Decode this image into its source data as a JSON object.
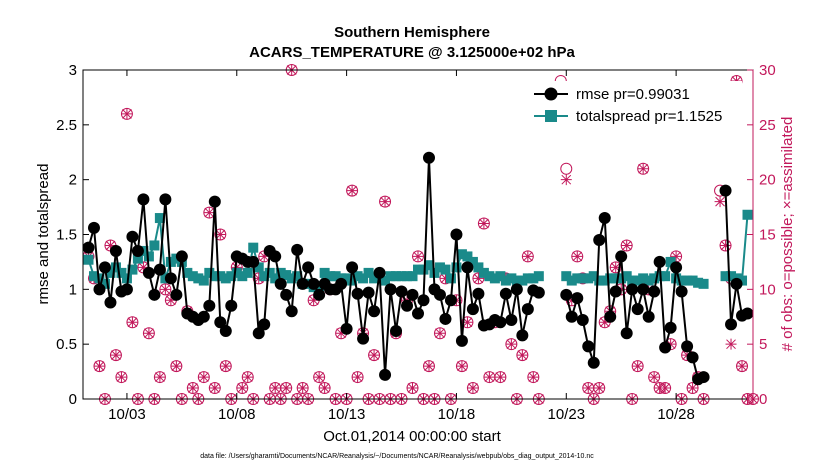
{
  "chart_data": {
    "type": "line",
    "title": "Southern Hemisphere",
    "subtitle": "ACARS_TEMPERATURE @ 3.125000e+02 hPa",
    "xlabel": "Oct.01,2014 00:00:00 start",
    "ylabel": "rmse and totalspread",
    "y2label": "# of obs: o=possible; ×=assimilated",
    "xlim": [
      1,
      31.5
    ],
    "ylim": [
      0,
      3
    ],
    "y2lim": [
      0,
      30
    ],
    "xtick_values": [
      3,
      8,
      13,
      18,
      23,
      28
    ],
    "xtick_labels": [
      "10/03",
      "10/08",
      "10/13",
      "10/18",
      "10/23",
      "10/28"
    ],
    "ytick_labels": [
      "0",
      "0.5",
      "1",
      "1.5",
      "2",
      "2.5",
      "3"
    ],
    "y2tick_labels": [
      "0",
      "5",
      "10",
      "15",
      "20",
      "25",
      "30"
    ],
    "grid": false,
    "legend_position": "top-right",
    "colors": {
      "rmse": "#000000",
      "totalspread": "#1a8a8a",
      "obs": "#c2185b"
    },
    "series": [
      {
        "name": "rmse pr=0.99031",
        "marker": "circle",
        "segments": [
          {
            "x": [
              1.25,
              1.5,
              1.75,
              2.0,
              2.25,
              2.5,
              2.75,
              3.0,
              3.25,
              3.5,
              3.75,
              4.0,
              4.25,
              4.5,
              4.75,
              5.0,
              5.25,
              5.5,
              5.75,
              6.0,
              6.25,
              6.5,
              6.75,
              7.0,
              7.25,
              7.5,
              7.75,
              8.0,
              8.25,
              8.5,
              8.75,
              9.0,
              9.25,
              9.5,
              9.75,
              10.0,
              10.25,
              10.5,
              10.75,
              11.0,
              11.25,
              11.5,
              11.75,
              12.0,
              12.25,
              12.5,
              12.75,
              13.0,
              13.25,
              13.5,
              13.75,
              14.0,
              14.25,
              14.5,
              14.75,
              15.0,
              15.25,
              15.5,
              15.75,
              16.0,
              16.25,
              16.5,
              16.75,
              17.0,
              17.25,
              17.5,
              17.75,
              18.0,
              18.25,
              18.5,
              18.75,
              19.0,
              19.25,
              19.5,
              19.75,
              20.0,
              20.25,
              20.5,
              20.75,
              21.0,
              21.25,
              21.5,
              21.75
            ],
            "y": [
              1.38,
              1.56,
              1.0,
              1.2,
              0.88,
              1.35,
              0.98,
              1.0,
              1.48,
              1.35,
              1.82,
              1.15,
              0.95,
              1.18,
              1.82,
              1.1,
              0.95,
              1.3,
              0.78,
              0.75,
              0.72,
              0.75,
              0.85,
              1.8,
              0.7,
              0.62,
              0.85,
              1.3,
              1.28,
              1.25,
              1.25,
              0.6,
              0.68,
              1.35,
              1.3,
              1.05,
              0.95,
              0.8,
              1.36,
              1.05,
              1.2,
              1.05,
              0.95,
              1.05,
              1.0,
              1.0,
              1.05,
              0.64,
              1.2,
              0.96,
              0.55,
              0.97,
              0.8,
              1.15,
              0.22,
              1.0,
              0.62,
              0.98,
              0.85,
              0.95,
              0.78,
              0.9,
              2.2,
              1.0,
              0.95,
              0.73,
              0.9,
              1.5,
              0.53,
              1.2,
              0.82,
              0.96,
              0.67,
              0.68,
              0.72,
              0.7,
              0.96,
              0.72,
              1.0,
              0.58,
              0.82,
              0.99,
              0.97
            ]
          },
          {
            "x": [
              23.0,
              23.25,
              23.5,
              23.75,
              24.0,
              24.25,
              24.5,
              24.75,
              25.0,
              25.25,
              25.5,
              25.75,
              26.0,
              26.25,
              26.5,
              26.75,
              27.0,
              27.25,
              27.5,
              27.75,
              28.0,
              28.25,
              28.5,
              28.75,
              29.0,
              29.25
            ],
            "y": [
              0.95,
              0.75,
              0.92,
              0.72,
              0.48,
              0.33,
              1.45,
              1.65,
              0.75,
              0.98,
              1.3,
              0.6,
              1.0,
              0.82,
              1.0,
              0.75,
              0.98,
              1.25,
              0.47,
              0.65,
              1.2,
              0.98,
              0.48,
              0.38,
              0.18,
              0.2
            ]
          },
          {
            "x": [
              30.25,
              30.5,
              30.75,
              31.0,
              31.25
            ],
            "y": [
              1.9,
              0.68,
              1.05,
              0.76,
              0.78
            ]
          }
        ]
      },
      {
        "name": "totalspread pr=1.1525",
        "marker": "square",
        "segments": [
          {
            "x": [
              1.25,
              1.5,
              1.75,
              2.0,
              2.25,
              2.5,
              2.75,
              3.0,
              3.25,
              3.5,
              3.75,
              4.0,
              4.25,
              4.5,
              4.75,
              5.0,
              5.25,
              5.5,
              5.75,
              6.0,
              6.25,
              6.5,
              6.75,
              7.0,
              7.25,
              7.5,
              7.75,
              8.0,
              8.25,
              8.5,
              8.75,
              9.0,
              9.25,
              9.5,
              9.75,
              10.0,
              10.25,
              10.5,
              10.75,
              11.0,
              11.25,
              11.5,
              11.75,
              12.0,
              12.25,
              12.5,
              12.75,
              13.0,
              13.25,
              13.5,
              13.75,
              14.0,
              14.25,
              14.5,
              14.75,
              15.0,
              15.25,
              15.5,
              15.75,
              16.0,
              16.25,
              16.5,
              16.75,
              17.0,
              17.25,
              17.5,
              17.75,
              18.0,
              18.25,
              18.5,
              18.75,
              19.0,
              19.25,
              19.5,
              19.75,
              20.0,
              20.25,
              20.5,
              20.75,
              21.0,
              21.25,
              21.5,
              21.75
            ],
            "y": [
              1.27,
              1.12,
              1.1,
              1.05,
              1.15,
              1.2,
              1.15,
              1.1,
              1.18,
              1.28,
              1.35,
              1.3,
              1.4,
              1.65,
              1.1,
              1.25,
              1.28,
              1.25,
              1.15,
              1.12,
              1.1,
              1.08,
              1.15,
              1.12,
              1.12,
              1.1,
              1.12,
              1.15,
              1.12,
              1.15,
              1.38,
              1.2,
              1.12,
              1.15,
              1.1,
              1.15,
              1.13,
              1.1,
              1.12,
              1.05,
              1.05,
              1.02,
              1.03,
              1.15,
              1.12,
              1.12,
              1.1,
              1.1,
              1.08,
              1.12,
              1.1,
              1.15,
              1.1,
              1.12,
              1.08,
              1.12,
              1.12,
              1.12,
              1.12,
              1.12,
              1.18,
              1.18,
              1.22,
              1.15,
              1.2,
              1.18,
              1.1,
              1.2,
              1.32,
              1.3,
              1.25,
              1.2,
              1.15,
              1.12,
              1.1,
              1.12,
              1.08,
              1.1,
              1.08,
              1.08,
              1.1,
              1.1,
              1.12
            ]
          },
          {
            "x": [
              23.0,
              23.25,
              23.5,
              23.75,
              24.0,
              24.25,
              24.5,
              24.75,
              25.0,
              25.25,
              25.5,
              25.75,
              26.0,
              26.25,
              26.5,
              26.75,
              27.0,
              27.25,
              27.5,
              27.75,
              28.0,
              28.25,
              28.5,
              28.75,
              29.0,
              29.25
            ],
            "y": [
              1.12,
              1.08,
              1.1,
              1.1,
              1.1,
              1.12,
              1.08,
              1.08,
              1.1,
              1.1,
              1.1,
              1.12,
              1.08,
              1.08,
              1.1,
              1.08,
              1.1,
              1.12,
              1.12,
              1.25,
              1.1,
              1.08,
              1.08,
              1.08,
              1.06,
              1.05
            ]
          },
          {
            "x": [
              30.25,
              30.5,
              30.75,
              31.0,
              31.25
            ],
            "y": [
              1.12,
              1.12,
              1.1,
              1.08,
              1.68
            ]
          }
        ]
      },
      {
        "name": "obs",
        "axis": "right",
        "x": [
          1.25,
          1.5,
          1.75,
          2.0,
          2.25,
          2.5,
          2.75,
          3.0,
          3.25,
          3.5,
          3.75,
          4.0,
          4.25,
          4.5,
          4.75,
          5.0,
          5.25,
          5.5,
          5.75,
          6.0,
          6.25,
          6.5,
          6.75,
          7.0,
          7.25,
          7.5,
          7.75,
          8.0,
          8.25,
          8.5,
          8.75,
          9.0,
          9.25,
          9.5,
          9.75,
          10.0,
          10.25,
          10.5,
          10.75,
          11.0,
          11.25,
          11.5,
          11.75,
          12.0,
          12.25,
          12.5,
          12.75,
          13.0,
          13.25,
          13.5,
          13.75,
          14.0,
          14.25,
          14.5,
          14.75,
          15.0,
          15.25,
          15.5,
          15.75,
          16.0,
          16.25,
          16.5,
          16.75,
          17.0,
          17.25,
          17.5,
          17.75,
          18.0,
          18.25,
          18.5,
          18.75,
          19.0,
          19.25,
          19.5,
          19.75,
          20.0,
          20.25,
          20.5,
          20.75,
          21.0,
          21.25,
          21.5,
          21.75,
          22.75,
          23.0,
          23.25,
          23.5,
          23.75,
          24.0,
          24.25,
          24.5,
          24.75,
          25.0,
          25.25,
          25.5,
          25.75,
          26.0,
          26.25,
          26.5,
          26.75,
          27.0,
          27.25,
          27.5,
          27.75,
          28.0,
          28.25,
          28.5,
          28.75,
          29.0,
          29.25,
          30.0,
          30.25,
          30.5,
          30.75,
          31.0,
          31.25,
          31.5
        ],
        "y": [
          13,
          11,
          3,
          0,
          14,
          4,
          2,
          26,
          7,
          0,
          12,
          6,
          0,
          2,
          10,
          9,
          3,
          0,
          8,
          1,
          0,
          2,
          17,
          1,
          15,
          3,
          0,
          12,
          1,
          2,
          0,
          11,
          13,
          0,
          1,
          0,
          1,
          30,
          0,
          1,
          0,
          9,
          2,
          1,
          10,
          0,
          6,
          0,
          19,
          2,
          6,
          0,
          4,
          0,
          18,
          0,
          6,
          0,
          9,
          1,
          13,
          0,
          3,
          0,
          6,
          11,
          0,
          9,
          3,
          7,
          1,
          11,
          16,
          2,
          7,
          2,
          11,
          5,
          0,
          4,
          13,
          2,
          0,
          29,
          21,
          9,
          13,
          11,
          1,
          0,
          1,
          7,
          8,
          12,
          10,
          14,
          0,
          3,
          21,
          10,
          2,
          1,
          1,
          5,
          13,
          0,
          4,
          1,
          2,
          0,
          19,
          14,
          11,
          29,
          3,
          0,
          0
        ],
        "y_assimilated": [
          13,
          11,
          3,
          0,
          14,
          4,
          2,
          26,
          7,
          0,
          12,
          6,
          0,
          2,
          10,
          9,
          3,
          0,
          8,
          1,
          0,
          2,
          17,
          1,
          15,
          3,
          0,
          12,
          1,
          2,
          0,
          11,
          13,
          0,
          1,
          0,
          1,
          30,
          0,
          1,
          0,
          9,
          2,
          1,
          10,
          0,
          6,
          0,
          19,
          2,
          6,
          0,
          4,
          0,
          18,
          0,
          6,
          0,
          9,
          1,
          13,
          0,
          3,
          0,
          6,
          11,
          0,
          9,
          3,
          7,
          1,
          11,
          16,
          2,
          7,
          2,
          11,
          5,
          0,
          4,
          13,
          2,
          0,
          28,
          20,
          9,
          13,
          11,
          1,
          0,
          1,
          7,
          8,
          12,
          10,
          14,
          0,
          3,
          21,
          10,
          2,
          1,
          1,
          5,
          13,
          0,
          4,
          1,
          2,
          0,
          18,
          14,
          5,
          29,
          3,
          0,
          0
        ]
      }
    ]
  },
  "footer": {
    "text": "data file: /Users/gharamti/Documents/NCAR/Reanalysis/~/Documents/NCAR/Reanalysis/webpub/obs_diag_output_2014-10.nc"
  }
}
